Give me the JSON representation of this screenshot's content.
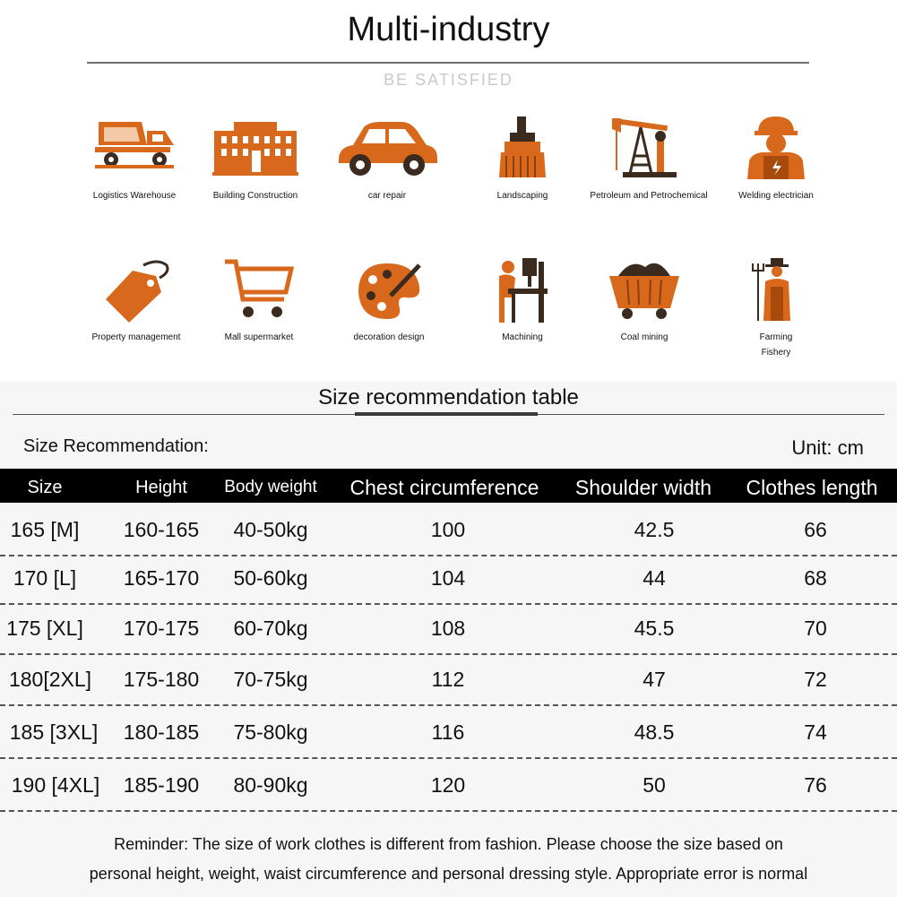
{
  "header": {
    "title": "Multi-industry",
    "subtitle": "BE SATISFIED"
  },
  "industries": [
    {
      "label": "Logistics Warehouse",
      "icon": "cement-truck-icon"
    },
    {
      "label": "Building Construction",
      "icon": "building-icon"
    },
    {
      "label": "car repair",
      "icon": "car-icon"
    },
    {
      "label": "Landscaping",
      "icon": "brush-icon"
    },
    {
      "label": "Petroleum and Petrochemical",
      "icon": "oil-pump-icon"
    },
    {
      "label": "Welding electrician",
      "icon": "worker-icon"
    },
    {
      "label": "Property management",
      "icon": "price-tag-icon"
    },
    {
      "label": "Mall supermarket",
      "icon": "shopping-cart-icon"
    },
    {
      "label": "decoration design",
      "icon": "palette-icon"
    },
    {
      "label": "Machining",
      "icon": "drill-press-icon"
    },
    {
      "label": "Coal mining",
      "icon": "mine-cart-icon"
    },
    {
      "label": "Farming\nFishery",
      "icon": "farmer-icon"
    }
  ],
  "size_section": {
    "title": "Size recommendation table",
    "left_label": "Size Recommendation:",
    "unit_label": "Unit: cm"
  },
  "size_table": {
    "headers": [
      "Size",
      "Height",
      "Body weight",
      "Chest circumference",
      "Shoulder width",
      "Clothes length"
    ],
    "rows": [
      [
        "165 [M]",
        "160-165",
        "40-50kg",
        "100",
        "42.5",
        "66"
      ],
      [
        "170  [L]",
        "165-170",
        "50-60kg",
        "104",
        "44",
        "68"
      ],
      [
        "175 [XL]",
        "170-175",
        "60-70kg",
        "108",
        "45.5",
        "70"
      ],
      [
        "180[2XL]",
        "175-180",
        "70-75kg",
        "112",
        "47",
        "72"
      ],
      [
        "185 [3XL]",
        "180-185",
        "75-80kg",
        "116",
        "48.5",
        "74"
      ],
      [
        "190 [4XL]",
        "185-190",
        "80-90kg",
        "120",
        "50",
        "76"
      ]
    ]
  },
  "reminder": {
    "line1": "Reminder: The size of work clothes is different from fashion. Please choose the size based on",
    "line2": "personal height, weight, waist circumference and personal dressing style. Appropriate error is normal"
  },
  "colors": {
    "icon_orange": "#d8691c",
    "icon_dark": "#3b2a1e",
    "header_bg": "#000000"
  }
}
